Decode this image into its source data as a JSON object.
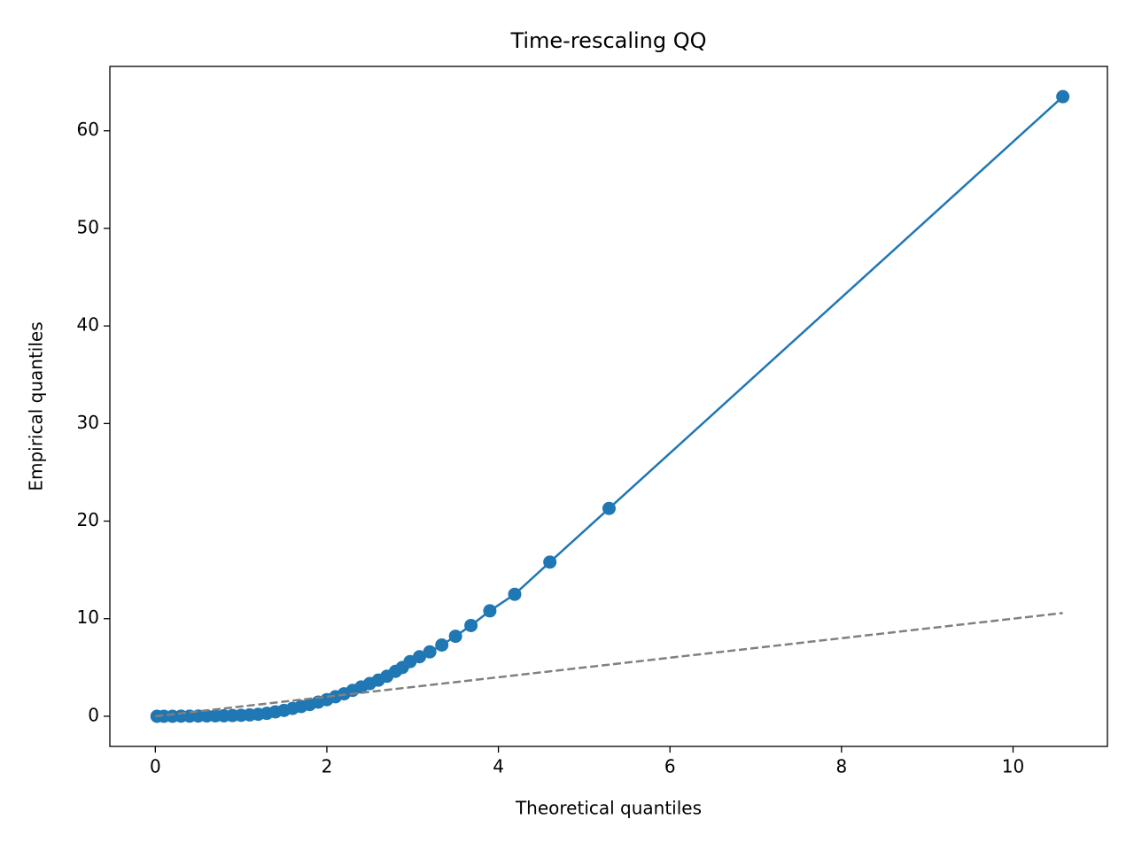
{
  "chart_data": {
    "type": "line",
    "title": "Time-rescaling QQ",
    "xlabel": "Theoretical quantiles",
    "ylabel": "Empirical quantiles",
    "xlim": [
      -0.53,
      11.1
    ],
    "ylim": [
      -3.09,
      66.6
    ],
    "xticks": [
      0,
      2,
      4,
      6,
      8,
      10
    ],
    "yticks": [
      0,
      10,
      20,
      30,
      40,
      50,
      60
    ],
    "series": [
      {
        "color": "#1f77b4",
        "marker": true,
        "linestyle": "solid",
        "x": [
          0.02,
          0.1,
          0.2,
          0.3,
          0.4,
          0.5,
          0.6,
          0.7,
          0.8,
          0.9,
          1.0,
          1.1,
          1.2,
          1.3,
          1.4,
          1.5,
          1.6,
          1.7,
          1.8,
          1.9,
          2.0,
          2.1,
          2.2,
          2.3,
          2.4,
          2.5,
          2.6,
          2.7,
          2.8,
          2.88,
          2.97,
          3.08,
          3.2,
          3.34,
          3.5,
          3.68,
          3.9,
          4.19,
          4.6,
          5.29,
          10.58
        ],
        "values": [
          0.0,
          0.0,
          0.0,
          0.01,
          0.01,
          0.02,
          0.03,
          0.04,
          0.05,
          0.07,
          0.1,
          0.14,
          0.2,
          0.3,
          0.45,
          0.6,
          0.8,
          1.0,
          1.2,
          1.45,
          1.7,
          2.0,
          2.3,
          2.65,
          3.0,
          3.35,
          3.7,
          4.1,
          4.6,
          5.0,
          5.6,
          6.1,
          6.6,
          7.3,
          8.2,
          9.3,
          10.8,
          12.5,
          15.8,
          21.3,
          63.5
        ]
      },
      {
        "color": "#808080",
        "marker": false,
        "linestyle": "dashed",
        "x": [
          0,
          10.58
        ],
        "values": [
          0,
          10.58
        ]
      }
    ]
  }
}
